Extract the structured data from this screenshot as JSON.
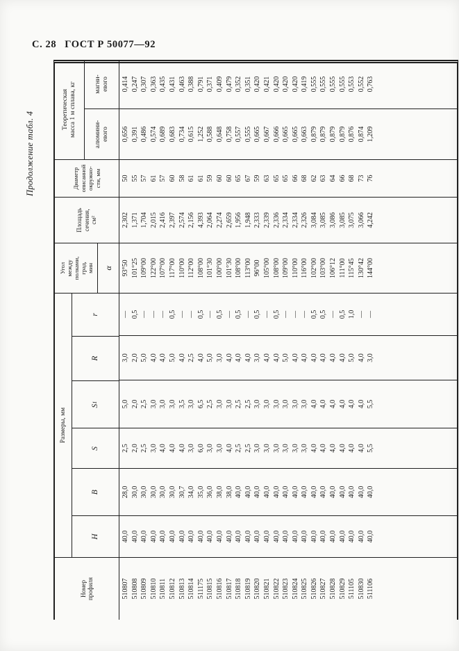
{
  "page_header": {
    "left": "С. 28",
    "right": "ГОСТ Р 50077—92"
  },
  "caption": "Продолжение табл. 4",
  "colors": {
    "ink": "#1c1c1c",
    "paper": "#fafaf8"
  },
  "table": {
    "headers": {
      "profile": "Номер\nпрофиля",
      "sizes_group": "Размеры, мм",
      "h": "Н",
      "b": "В",
      "s": "S",
      "s1_base": "S",
      "s1_sub": "1",
      "r_big": "R",
      "r_small": "r",
      "angle": "Угол\nмежду\nполками,\nград,\nмин",
      "alpha": "α",
      "area": "Площадь\nсечения,\nсм²",
      "diameter": "Диаметр\nописанной\nокружно-\nсти, мм",
      "mass_group": "Теоретическая\nмасса 1 м сплава, кг",
      "aluminum": "алюмини-\nевого",
      "magnesium": "магни-\nевого"
    },
    "columns_order": [
      "profile",
      "H",
      "B",
      "S",
      "S1",
      "R",
      "r",
      "alpha_deg_min",
      "area_cm2",
      "diameter_mm",
      "mass_aluminum_kg",
      "mass_magnesium_kg"
    ],
    "rows": [
      [
        "510807",
        "40,0",
        "28,0",
        "2,5",
        "5,0",
        "3,0",
        "—",
        "93°50",
        "2,302",
        "50",
        "0,656",
        "0,414"
      ],
      [
        "510808",
        "40,0",
        "30,0",
        "2,0",
        "2,0",
        "2,0",
        "0,5",
        "101°25",
        "1,371",
        "55",
        "0,391",
        "0,247"
      ],
      [
        "510809",
        "40,0",
        "30,0",
        "2,5",
        "2,5",
        "5,0",
        "—",
        "109°00",
        "1,704",
        "57",
        "0,486",
        "0,307"
      ],
      [
        "510810",
        "40,0",
        "30,0",
        "3,0",
        "3,0",
        "4,0",
        "—",
        "122°00",
        "2,015",
        "61",
        "0,574",
        "0,363"
      ],
      [
        "510811",
        "40,0",
        "30,0",
        "4,0",
        "3,0",
        "4,0",
        "—",
        "107°00",
        "2,416",
        "57",
        "0,689",
        "0,435"
      ],
      [
        "510812",
        "40,0",
        "30,0",
        "4,0",
        "3,0",
        "5,0",
        "0,5",
        "117°00",
        "2,397",
        "60",
        "0,683",
        "0,431"
      ],
      [
        "510813",
        "40,0",
        "30,7",
        "4,0",
        "3,5",
        "4,0",
        "—",
        "110°00",
        "2,574",
        "58",
        "0,734",
        "0,463"
      ],
      [
        "510814",
        "40,0",
        "34,0",
        "3,0",
        "3,0",
        "2,5",
        "—",
        "112°00",
        "2,156",
        "61",
        "0,615",
        "0,388"
      ],
      [
        "511175",
        "40,0",
        "35,0",
        "6,0",
        "6,5",
        "4,0",
        "0,5",
        "108°00",
        "4,393",
        "61",
        "1,252",
        "0,791"
      ],
      [
        "510815",
        "40,0",
        "36,0",
        "3,0",
        "2,5",
        "5,0",
        "—",
        "101°30",
        "2,064",
        "59",
        "0,588",
        "0,371"
      ],
      [
        "510816",
        "40,0",
        "38,0",
        "3,0",
        "3,0",
        "3,0",
        "0,5",
        "100°00",
        "2,274",
        "60",
        "0,648",
        "0,409"
      ],
      [
        "510817",
        "40,0",
        "38,0",
        "4,0",
        "3,0",
        "4,0",
        "—",
        "101°30",
        "2,659",
        "60",
        "0,758",
        "0,479"
      ],
      [
        "510818",
        "40,0",
        "40,0",
        "2,5",
        "2,5",
        "4,0",
        "0,5",
        "108°00",
        "1,956",
        "65",
        "0,557",
        "0,352"
      ],
      [
        "510819",
        "40,0",
        "40,0",
        "2,5",
        "2,5",
        "4,0",
        "—",
        "113°00",
        "1,948",
        "67",
        "0,555",
        "0,351"
      ],
      [
        "510820",
        "40,0",
        "40,0",
        "3,0",
        "3,0",
        "3,0",
        "0,5",
        "96°00",
        "2,333",
        "59",
        "0,665",
        "0,420"
      ],
      [
        "510821",
        "40,0",
        "40,0",
        "3,0",
        "3,0",
        "4,0",
        "—",
        "105°00",
        "2,339",
        "63",
        "0,667",
        "0,421"
      ],
      [
        "510822",
        "40,0",
        "40,0",
        "3,0",
        "3,0",
        "4,0",
        "0,5",
        "108°00",
        "2,336",
        "65",
        "0,666",
        "0,420"
      ],
      [
        "510823",
        "40,0",
        "40,0",
        "3,0",
        "3,0",
        "5,0",
        "—",
        "109°00",
        "2,334",
        "65",
        "0,665",
        "0,420"
      ],
      [
        "510824",
        "40,0",
        "40,0",
        "3,0",
        "3,0",
        "4,0",
        "—",
        "110°00",
        "2,334",
        "66",
        "0,665",
        "0,420"
      ],
      [
        "510825",
        "40,0",
        "40,0",
        "3,0",
        "3,0",
        "4,0",
        "—",
        "116°00",
        "2,326",
        "68",
        "0,663",
        "0,419"
      ],
      [
        "510826",
        "40,0",
        "40,0",
        "4,0",
        "4,0",
        "4,0",
        "0,5",
        "102°00",
        "3,084",
        "62",
        "0,879",
        "0,555"
      ],
      [
        "510827",
        "40,0",
        "40,0",
        "4,0",
        "4,0",
        "4,0",
        "0,5",
        "103°00",
        "3,085",
        "63",
        "0,879",
        "0,555"
      ],
      [
        "510828",
        "40,0",
        "40,0",
        "4,0",
        "4,0",
        "4,0",
        "—",
        "106°12",
        "3,086",
        "64",
        "0,879",
        "0,555"
      ],
      [
        "510829",
        "40,0",
        "40,0",
        "4,0",
        "4,0",
        "4,0",
        "0,5",
        "111°00",
        "3,085",
        "66",
        "0,879",
        "0,555"
      ],
      [
        "511105",
        "40,0",
        "40,0",
        "4,0",
        "4,0",
        "5,0",
        "1,0",
        "115°45",
        "3,075",
        "68",
        "0,876",
        "0,553"
      ],
      [
        "510830",
        "40,0",
        "40,0",
        "4,0",
        "4,0",
        "4,0",
        "—",
        "130°42",
        "3,066",
        "73",
        "0,874",
        "0,552"
      ],
      [
        "511106",
        "40,0",
        "40,0",
        "5,5",
        "5,5",
        "3,0",
        "—",
        "144°00",
        "4,242",
        "76",
        "1,209",
        "0,763"
      ]
    ]
  }
}
